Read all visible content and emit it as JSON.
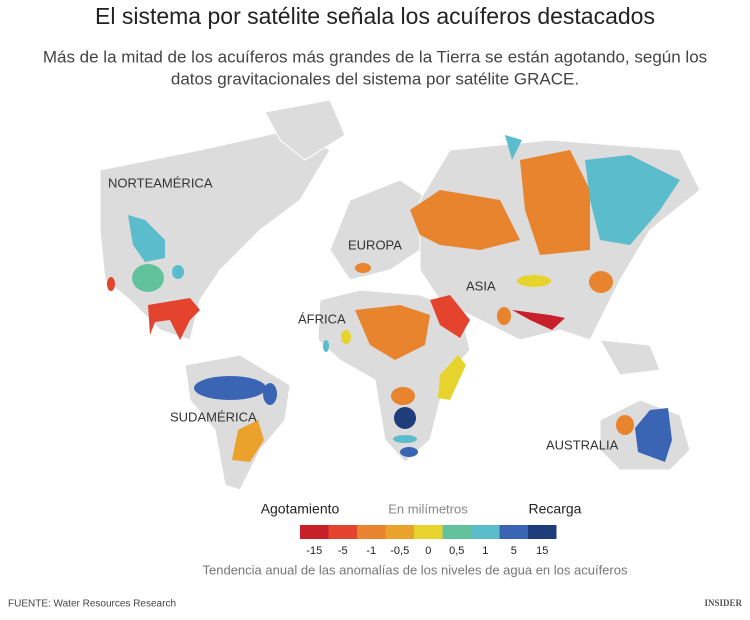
{
  "header": {
    "title": "El sistema por satélite señala los acuíferos  destacados",
    "subtitle_lines": [
      "Más de la mitad de los acuíferos más grandes de la Tierra se están agotando, según los",
      "datos gravitacionales del sistema por satélite GRACE."
    ]
  },
  "map": {
    "regions": [
      "NORTEAMÉRICA",
      "EUROPA",
      "ASIA",
      "ÁFRICA",
      "SUDAMÉRICA",
      "AUSTRALIA"
    ]
  },
  "legend": {
    "left_label": "Agotamiento",
    "unit_label": "En milímetros",
    "right_label": "Recarga",
    "steps": [
      {
        "color": "#c8202a",
        "label": "-15"
      },
      {
        "color": "#e4432e",
        "label": "-5"
      },
      {
        "color": "#e8832e",
        "label": "-1"
      },
      {
        "color": "#eaa22c",
        "label": "-0,5"
      },
      {
        "color": "#e6d42c",
        "label": "0"
      },
      {
        "color": "#62c29b",
        "label": "0,5"
      },
      {
        "color": "#5bbccb",
        "label": "1"
      },
      {
        "color": "#3a65b4",
        "label": "5"
      },
      {
        "color": "#1f3d7a",
        "label": "15"
      }
    ],
    "caption": "Tendencia anual de las anomalías de los niveles de agua en los acuíferos"
  },
  "footer": {
    "source": "FUENTE: Water Resources Research",
    "logo": "INSIDER"
  }
}
